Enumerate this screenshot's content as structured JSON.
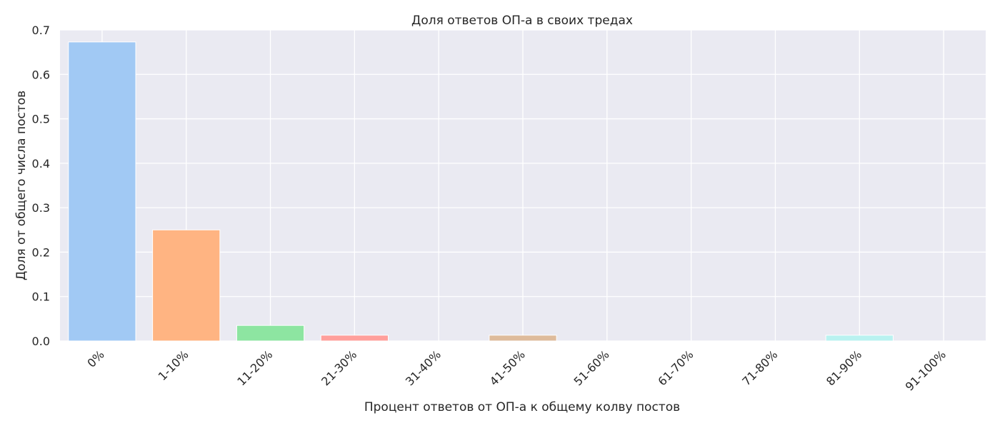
{
  "chart_data": {
    "type": "bar",
    "title": "Доля ответов ОП-а в своих тредах",
    "xlabel": "Процент ответов от ОП-а к общему колву постов",
    "ylabel": "Доля от общего числа постов",
    "categories": [
      "0%",
      "1-10%",
      "11-20%",
      "21-30%",
      "31-40%",
      "41-50%",
      "51-60%",
      "61-70%",
      "71-80%",
      "81-90%",
      "91-100%"
    ],
    "values": [
      0.673,
      0.25,
      0.035,
      0.013,
      0.0,
      0.013,
      0.0,
      0.0,
      0.0,
      0.013,
      0.0
    ],
    "colors": [
      "#a1c9f4",
      "#ffb482",
      "#8de5a1",
      "#ff9f9b",
      "#d0bbff",
      "#debb9b",
      "#fab0e4",
      "#cfcfcf",
      "#fffea3",
      "#b9f2f0",
      "#a1c9f4"
    ],
    "ylim": [
      0,
      0.7
    ],
    "yticks": [
      0.0,
      0.1,
      0.2,
      0.3,
      0.4,
      0.5,
      0.6,
      0.7
    ],
    "ytick_labels": [
      "0.0",
      "0.1",
      "0.2",
      "0.3",
      "0.4",
      "0.5",
      "0.6",
      "0.7"
    ],
    "grid": true,
    "background": "#eaeaf2",
    "grid_color": "#ffffff"
  }
}
